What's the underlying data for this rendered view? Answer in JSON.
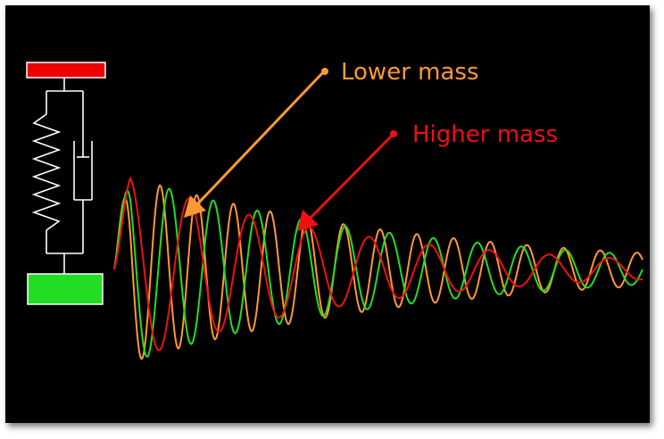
{
  "labels": {
    "lower_mass": "Lower mass",
    "higher_mass": "Higher mass"
  },
  "colors": {
    "background": "#000000",
    "top_mass_block": "#ee0000",
    "bottom_mass_block": "#22dd22",
    "spring_damper_lines": "#ffffff",
    "lower_mass": "#ff9933",
    "green_curve": "#22dd22",
    "higher_mass": "#ee1111"
  },
  "chart_data": {
    "type": "line",
    "series": [
      {
        "label_key": "lower_mass",
        "color": "#ff9933",
        "frequency": 0.36,
        "decay": 0.9,
        "amplitude": 1.0,
        "start": "up"
      },
      {
        "color": "#22dd22",
        "frequency": 0.3,
        "decay": 0.85,
        "amplitude": 1.0,
        "start": "up"
      },
      {
        "label_key": "higher_mass",
        "color": "#ee1111",
        "frequency": 0.22,
        "decay": 0.7,
        "amplitude": 1.0,
        "start": "up"
      }
    ]
  }
}
